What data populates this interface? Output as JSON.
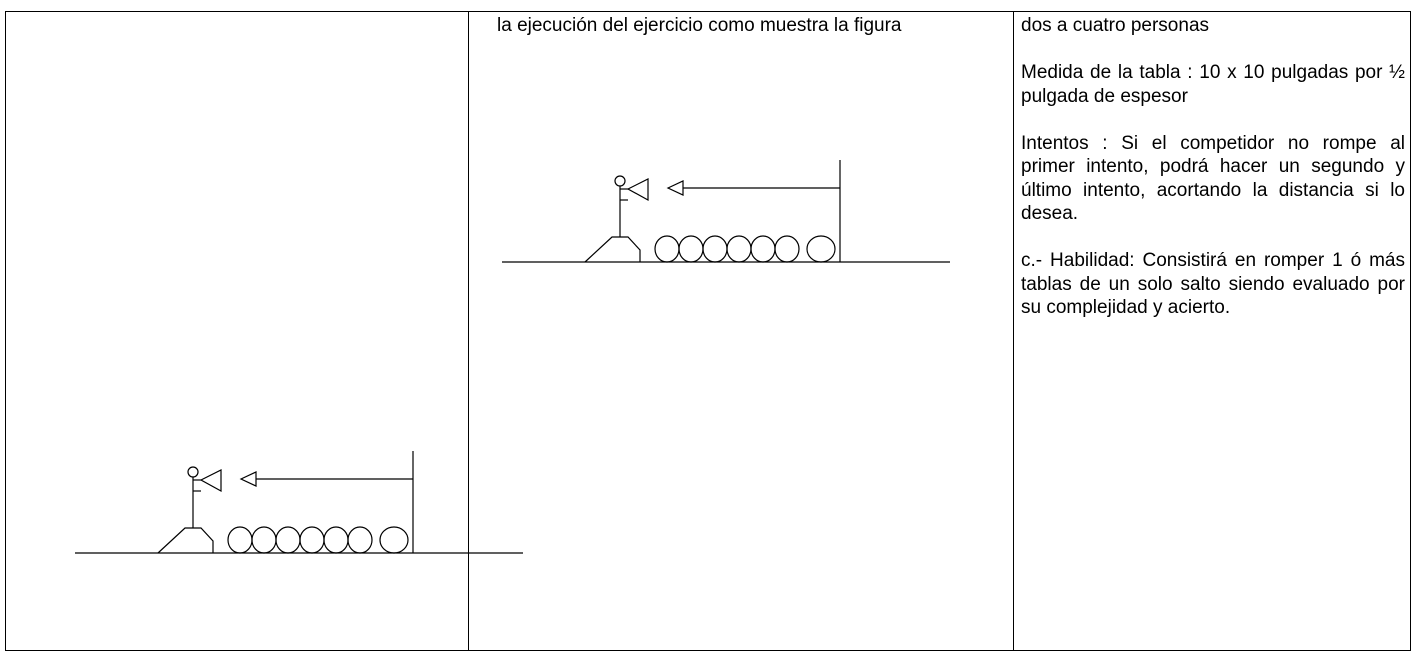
{
  "middle_cell": {
    "text": "la ejecución del ejercicio como muestra la figura"
  },
  "right_cell": {
    "paragraphs": [
      "dos a cuatro personas",
      "Medida de la tabla : 10 x 10 pulgadas por ½ pulgada de espesor",
      "Intentos : Si el competidor no rompe al primer intento, podrá hacer un segundo y último intento, acortando la distancia si lo desea.",
      "c.- Habilidad: Consistirá en romper 1 ó más tablas de un solo salto siendo evaluado por su complejidad y acierto."
    ]
  }
}
